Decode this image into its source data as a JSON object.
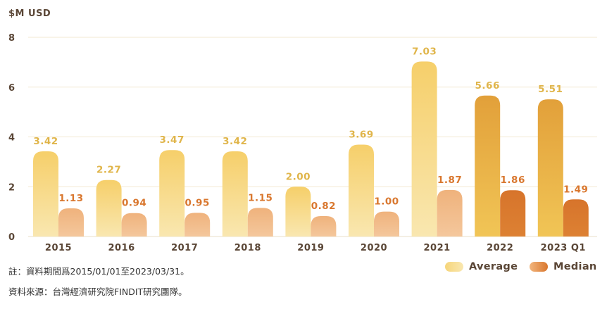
{
  "unit_label": "$M USD",
  "notes": {
    "period": "註：資料期間爲2015/01/01至2023/03/31。",
    "source": "資料來源：台灣經濟研究院FINDIT研究團隊。"
  },
  "chart_data": {
    "type": "bar",
    "categories": [
      "2015",
      "2016",
      "2017",
      "2018",
      "2019",
      "2020",
      "2021",
      "2022",
      "2023 Q1"
    ],
    "series": [
      {
        "name": "Average",
        "values": [
          3.42,
          2.27,
          3.47,
          3.42,
          2.0,
          3.69,
          7.03,
          5.66,
          5.51
        ]
      },
      {
        "name": "Median",
        "values": [
          1.13,
          0.94,
          0.95,
          1.15,
          0.82,
          1.0,
          1.87,
          1.86,
          1.49
        ]
      }
    ],
    "data_labels": {
      "Average": [
        "3.42",
        "2.27",
        "3.47",
        "3.42",
        "2.00",
        "3.69",
        "7.03",
        "5.66",
        "5.51"
      ],
      "Median": [
        "1.13",
        "0.94",
        "0.95",
        "1.15",
        "0.82",
        "1.00",
        "1.87",
        "1.86",
        "1.49"
      ]
    },
    "ylim": [
      0,
      8
    ],
    "yticks": [
      "0",
      "2",
      "4",
      "6",
      "8"
    ],
    "grid": true,
    "legend_position": "bottom-right",
    "colors": {
      "average_light": "#f7e3a3",
      "average_mid": "#f3c65a",
      "median_light": "#f0b98a",
      "highlight_average": "#e3a23c",
      "highlight_median": "#d9772e",
      "avg_label": "#e0b54a",
      "med_label": "#d9772e",
      "axis_text": "#5a4636",
      "grid": "#f3e9d2"
    },
    "highlight_categories": [
      "2022",
      "2023 Q1"
    ]
  }
}
